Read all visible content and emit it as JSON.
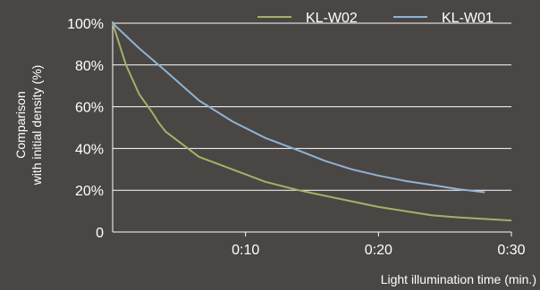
{
  "chart_data": {
    "type": "line",
    "title": "",
    "xlabel": "Light illumination time (min.)",
    "ylabel_lines": [
      "Comparison",
      "with initial density (%)"
    ],
    "x_tick_labels": [
      {
        "value": 10,
        "label": "0:10"
      },
      {
        "value": 20,
        "label": "0:20"
      },
      {
        "value": 30,
        "label": "0:30"
      }
    ],
    "y_tick_labels": [
      {
        "value": 0,
        "label": "0"
      },
      {
        "value": 20,
        "label": "20%"
      },
      {
        "value": 40,
        "label": "40%"
      },
      {
        "value": 60,
        "label": "60%"
      },
      {
        "value": 80,
        "label": "80%"
      },
      {
        "value": 100,
        "label": "100%"
      }
    ],
    "xlim": [
      0,
      30
    ],
    "ylim": [
      0,
      100
    ],
    "grid": "horizontal",
    "legend_position": "top-right",
    "series": [
      {
        "name": "KL-W02",
        "color": "#a2b366",
        "points": [
          [
            0,
            100
          ],
          [
            1,
            80
          ],
          [
            2,
            66
          ],
          [
            3,
            57
          ],
          [
            3.5,
            52
          ],
          [
            4,
            48
          ],
          [
            6.5,
            36
          ],
          [
            9,
            30
          ],
          [
            11.5,
            24
          ],
          [
            14,
            20
          ],
          [
            17,
            16
          ],
          [
            20,
            12
          ],
          [
            24,
            8
          ],
          [
            26,
            7
          ],
          [
            30,
            5.5
          ]
        ]
      },
      {
        "name": "KL-W01",
        "color": "#8fb3d5",
        "points": [
          [
            0,
            100
          ],
          [
            2,
            88
          ],
          [
            4,
            77
          ],
          [
            6.5,
            63
          ],
          [
            9,
            53
          ],
          [
            11.5,
            45
          ],
          [
            14,
            39
          ],
          [
            16,
            34
          ],
          [
            18,
            30
          ],
          [
            20,
            27
          ],
          [
            22,
            24.5
          ],
          [
            24,
            22.5
          ],
          [
            26,
            20.5
          ],
          [
            28,
            19
          ]
        ]
      }
    ]
  },
  "colors": {
    "background": "#4a4644",
    "gridline": "#ffffff",
    "text": "#ffffff"
  }
}
